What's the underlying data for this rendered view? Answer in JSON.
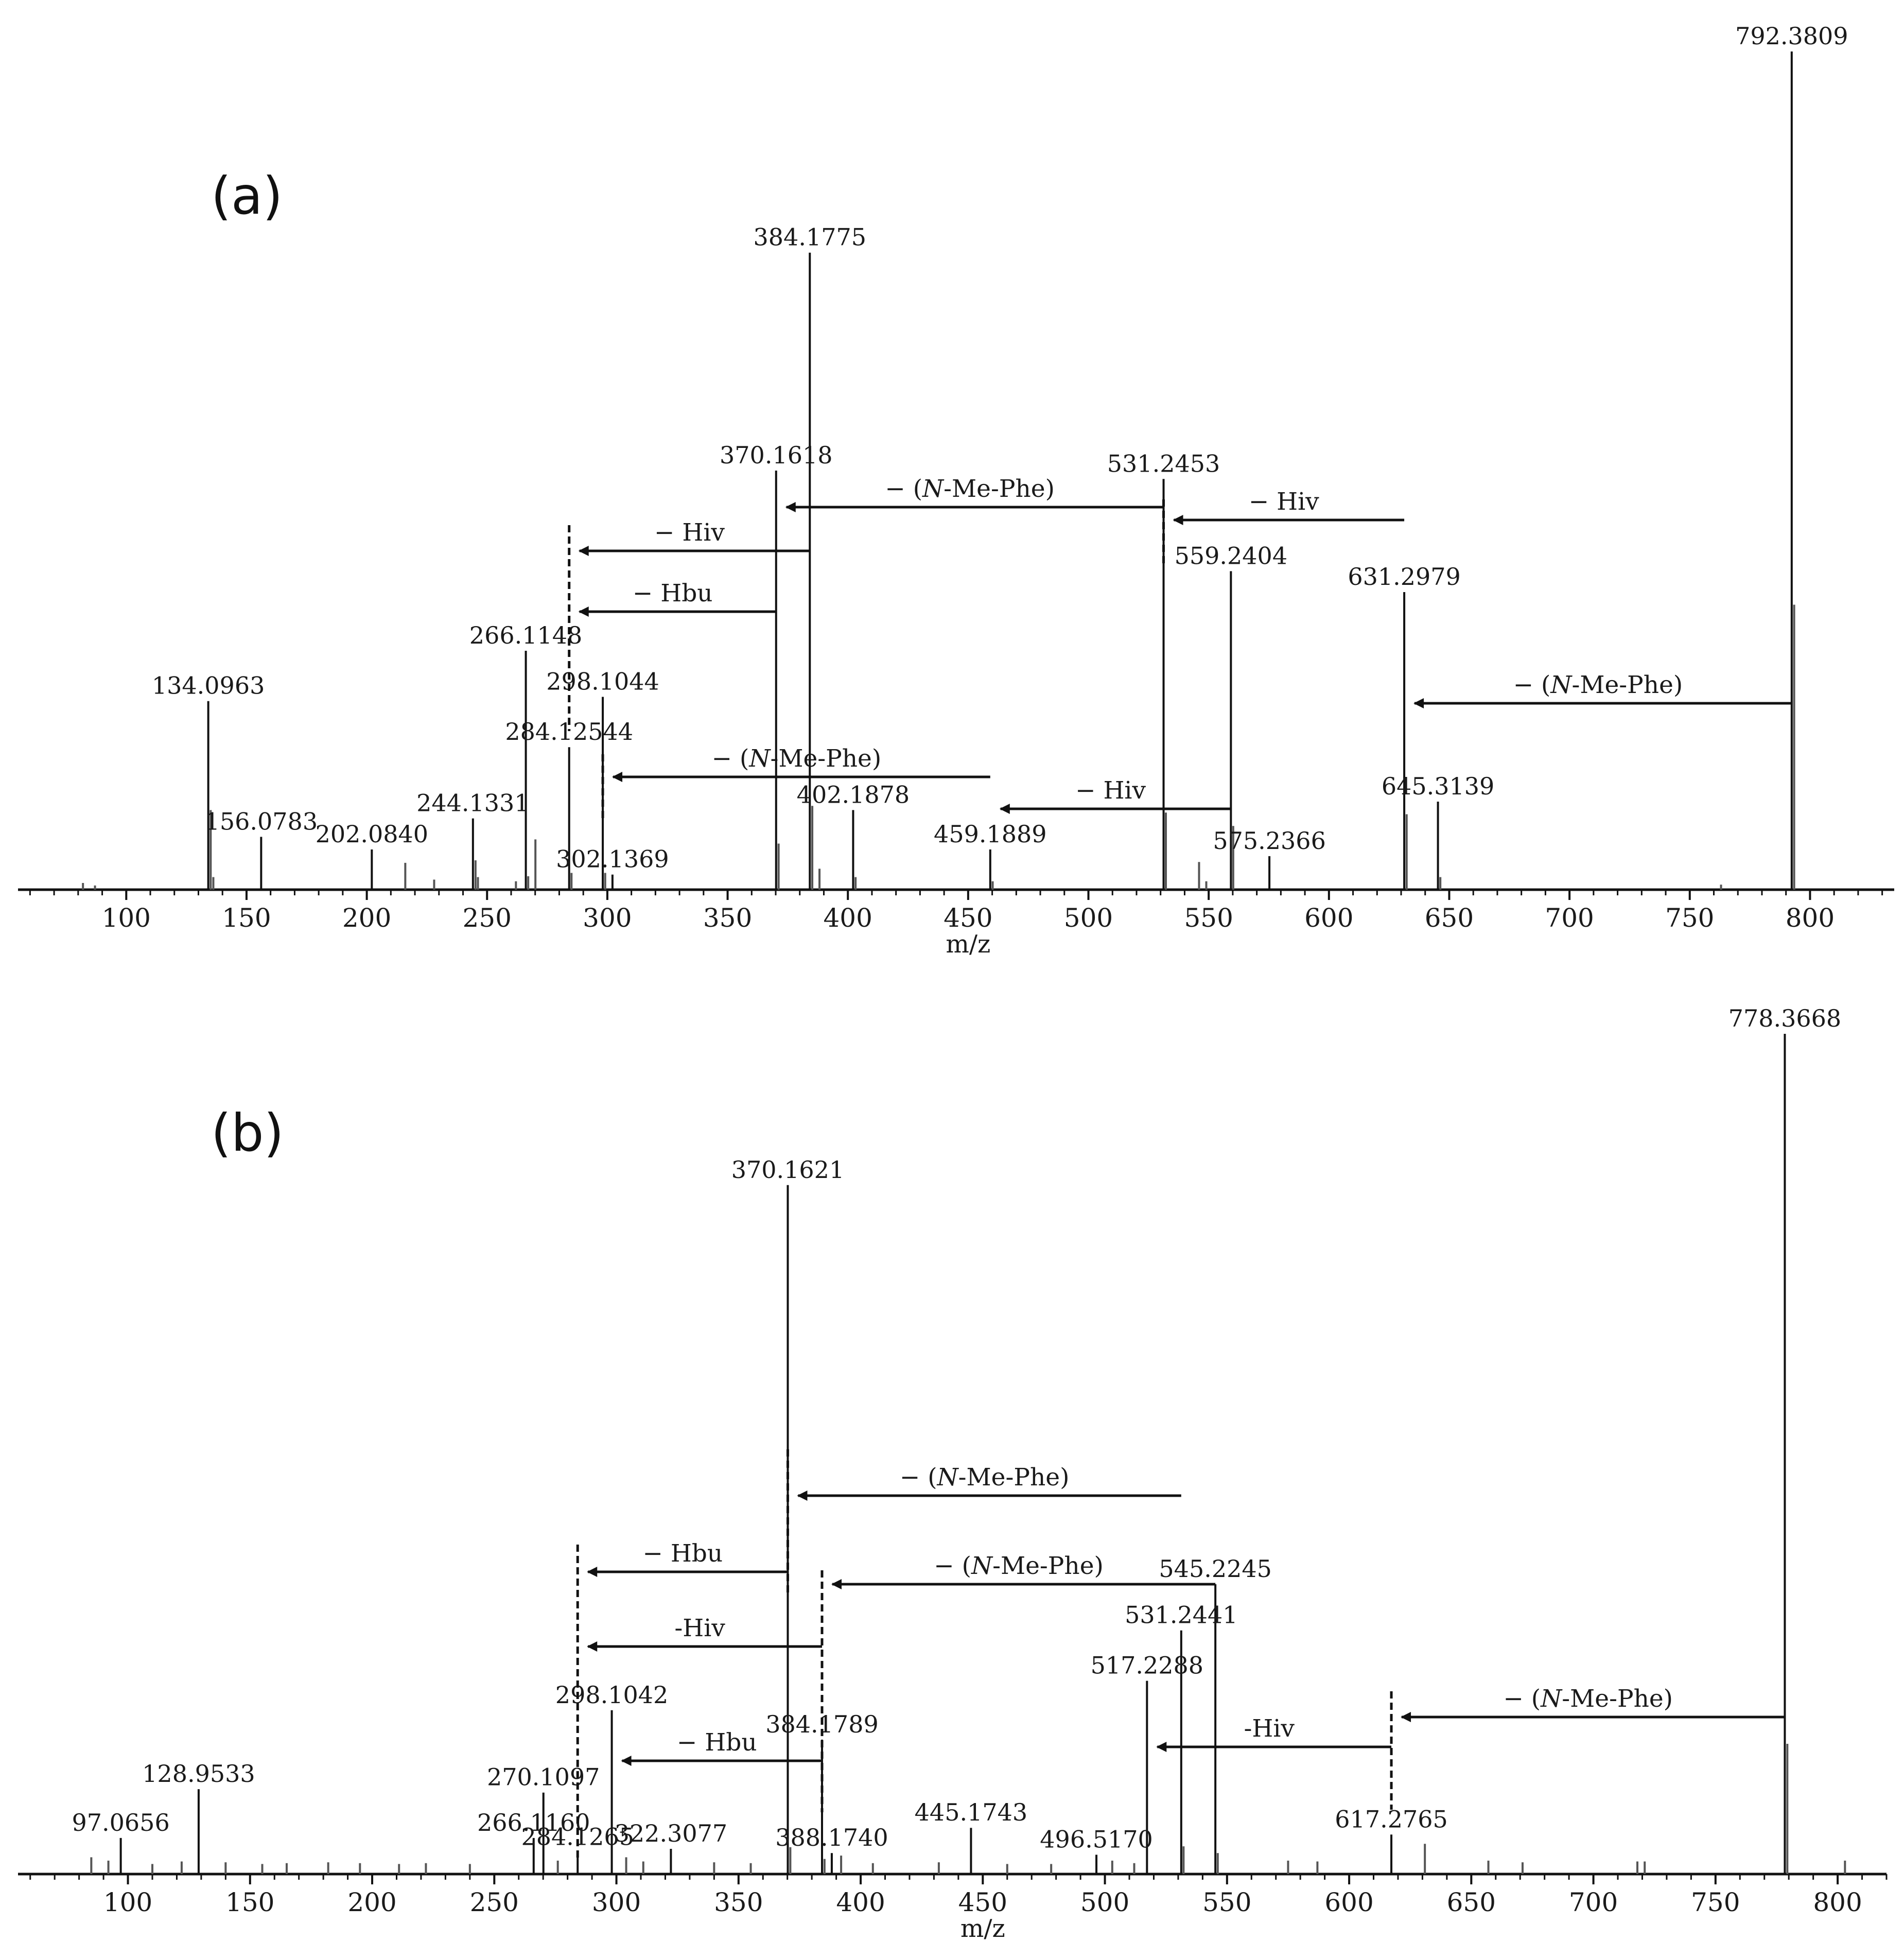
{
  "chart_data": [
    {
      "type": "bar",
      "panel_label": "(a)",
      "xlabel": "m/z",
      "xlim": [
        55,
        835
      ],
      "x_ticks": [
        "100",
        "150",
        "200",
        "250",
        "300",
        "350",
        "400",
        "450",
        "500",
        "550",
        "600",
        "650",
        "700",
        "750",
        "800"
      ],
      "y_relative_max": 100,
      "peaks": [
        {
          "mz": 792.3809,
          "label": "792.3809",
          "rel": 100
        },
        {
          "mz": 384.1775,
          "label": "384.1775",
          "rel": 76
        },
        {
          "mz": 370.1618,
          "label": "370.1618",
          "rel": 50
        },
        {
          "mz": 531.2453,
          "label": "531.2453",
          "rel": 49
        },
        {
          "mz": 559.2404,
          "label": "559.2404",
          "rel": 38
        },
        {
          "mz": 631.2979,
          "label": "631.2979",
          "rel": 35.5
        },
        {
          "mz": 266.1148,
          "label": "266.1148",
          "rel": 28.5
        },
        {
          "mz": 298.1044,
          "label": "298.1044",
          "rel": 23
        },
        {
          "mz": 134.0963,
          "label": "134.0963",
          "rel": 22.5
        },
        {
          "mz": 284.1254,
          "label": "284.12544",
          "rel": 17
        },
        {
          "mz": 402.1878,
          "label": "402.1878",
          "rel": 9.5
        },
        {
          "mz": 645.3139,
          "label": "645.3139",
          "rel": 10.5
        },
        {
          "mz": 244.1331,
          "label": "244.1331",
          "rel": 8.5
        },
        {
          "mz": 156.0783,
          "label": "156.0783",
          "rel": 6.3
        },
        {
          "mz": 202.084,
          "label": "202.0840",
          "rel": 4.8
        },
        {
          "mz": 459.1889,
          "label": "459.1889",
          "rel": 4.8
        },
        {
          "mz": 575.2366,
          "label": "575.2366",
          "rel": 4
        },
        {
          "mz": 302.1369,
          "label": "302.1369",
          "rel": 1.8
        }
      ],
      "minor_peaks": [
        {
          "mz": 82,
          "rel": 0.8
        },
        {
          "mz": 87,
          "rel": 0.5
        },
        {
          "mz": 135.1,
          "rel": 9.5
        },
        {
          "mz": 136.2,
          "rel": 1.5
        },
        {
          "mz": 216,
          "rel": 3.2
        },
        {
          "mz": 228,
          "rel": 1.2
        },
        {
          "mz": 245.2,
          "rel": 3.5
        },
        {
          "mz": 246.2,
          "rel": 1.5
        },
        {
          "mz": 262,
          "rel": 1
        },
        {
          "mz": 267.1,
          "rel": 1.6
        },
        {
          "mz": 270.1,
          "rel": 6
        },
        {
          "mz": 285.1,
          "rel": 2
        },
        {
          "mz": 299.1,
          "rel": 2
        },
        {
          "mz": 371.2,
          "rel": 5.5
        },
        {
          "mz": 385.2,
          "rel": 10
        },
        {
          "mz": 388.2,
          "rel": 2.5
        },
        {
          "mz": 403.2,
          "rel": 1.5
        },
        {
          "mz": 460.2,
          "rel": 1
        },
        {
          "mz": 532.2,
          "rel": 9.2
        },
        {
          "mz": 546,
          "rel": 3.3
        },
        {
          "mz": 549,
          "rel": 1
        },
        {
          "mz": 560.2,
          "rel": 7.6
        },
        {
          "mz": 632.3,
          "rel": 9
        },
        {
          "mz": 646.3,
          "rel": 1.5
        },
        {
          "mz": 763,
          "rel": 0.6
        },
        {
          "mz": 793.4,
          "rel": 34
        }
      ],
      "annotations": [
        {
          "label_prefix": "− Hiv",
          "from_mz": 631.2979,
          "to_mz": 531.2453
        },
        {
          "label_prefix": "− (",
          "label_italic": "N",
          "label_suffix": "-Me-Phe)",
          "from_mz": 531.2453,
          "to_mz": 370.1618
        },
        {
          "label_prefix": "− Hiv",
          "from_mz": 384.1775,
          "to_mz": 284.1254
        },
        {
          "label_prefix": "− Hbu",
          "from_mz": 370.1618,
          "to_mz": 284.1254
        },
        {
          "label_prefix": "− (",
          "label_italic": "N",
          "label_suffix": "-Me-Phe)",
          "from_mz": 792.3809,
          "to_mz": 631.2979
        },
        {
          "label_prefix": "− (",
          "label_italic": "N",
          "label_suffix": "-Me-Phe)",
          "from_mz": 459.1889,
          "to_mz": 298.1044
        },
        {
          "label_prefix": "− Hiv",
          "from_mz": 559.2404,
          "to_mz": 459.1889
        }
      ]
    },
    {
      "type": "bar",
      "panel_label": "(b)",
      "xlabel": "m/z",
      "xlim": [
        55,
        820
      ],
      "x_ticks": [
        "100",
        "150",
        "200",
        "250",
        "300",
        "350",
        "400",
        "450",
        "500",
        "550",
        "600",
        "650",
        "700",
        "750",
        "800"
      ],
      "y_relative_max": 100,
      "peaks": [
        {
          "mz": 778.3668,
          "label": "778.3668",
          "rel": 100
        },
        {
          "mz": 370.1621,
          "label": "370.1621",
          "rel": 82
        },
        {
          "mz": 545.2245,
          "label": "545.2245",
          "rel": 34.5
        },
        {
          "mz": 531.2441,
          "label": "531.2441",
          "rel": 29
        },
        {
          "mz": 517.2288,
          "label": "517.2288",
          "rel": 23
        },
        {
          "mz": 298.1042,
          "label": "298.1042",
          "rel": 19.5
        },
        {
          "mz": 384.1789,
          "label": "384.1789",
          "rel": 16
        },
        {
          "mz": 128.9533,
          "label": "128.9533",
          "rel": 10.1
        },
        {
          "mz": 270.1097,
          "label": "270.1097",
          "rel": 9.7
        },
        {
          "mz": 617.2765,
          "label": "617.2765",
          "rel": 4.7
        },
        {
          "mz": 445.1743,
          "label": "445.1743",
          "rel": 5.5
        },
        {
          "mz": 97.0656,
          "label": "97.0656",
          "rel": 4.3
        },
        {
          "mz": 266.116,
          "label": "266.1160",
          "rel": 4.3
        },
        {
          "mz": 322.3077,
          "label": "322.3077",
          "rel": 3
        },
        {
          "mz": 284.1265,
          "label": "284.1265",
          "rel": 2.6
        },
        {
          "mz": 388.174,
          "label": "388.1740",
          "rel": 2.5
        },
        {
          "mz": 496.517,
          "label": "496.5170",
          "rel": 2.3
        }
      ],
      "minor_peaks": [
        {
          "mz": 85,
          "rel": 2
        },
        {
          "mz": 92,
          "rel": 1.6
        },
        {
          "mz": 110,
          "rel": 1.2
        },
        {
          "mz": 122,
          "rel": 1.5
        },
        {
          "mz": 140,
          "rel": 1.4
        },
        {
          "mz": 155,
          "rel": 1.2
        },
        {
          "mz": 165,
          "rel": 1.3
        },
        {
          "mz": 182,
          "rel": 1.4
        },
        {
          "mz": 195,
          "rel": 1.3
        },
        {
          "mz": 211,
          "rel": 1.2
        },
        {
          "mz": 222,
          "rel": 1.3
        },
        {
          "mz": 240,
          "rel": 1.2
        },
        {
          "mz": 276,
          "rel": 1.6
        },
        {
          "mz": 304,
          "rel": 2
        },
        {
          "mz": 311,
          "rel": 1.5
        },
        {
          "mz": 340,
          "rel": 1.4
        },
        {
          "mz": 355,
          "rel": 1.3
        },
        {
          "mz": 371.2,
          "rel": 3.2
        },
        {
          "mz": 385.2,
          "rel": 1.8
        },
        {
          "mz": 392,
          "rel": 2.2
        },
        {
          "mz": 405,
          "rel": 1.3
        },
        {
          "mz": 432,
          "rel": 1.4
        },
        {
          "mz": 460,
          "rel": 1.2
        },
        {
          "mz": 478,
          "rel": 1.2
        },
        {
          "mz": 503,
          "rel": 1.6
        },
        {
          "mz": 512,
          "rel": 1.3
        },
        {
          "mz": 532.2,
          "rel": 3.3
        },
        {
          "mz": 546.2,
          "rel": 2.5
        },
        {
          "mz": 575,
          "rel": 1.6
        },
        {
          "mz": 587,
          "rel": 1.5
        },
        {
          "mz": 631,
          "rel": 3.6
        },
        {
          "mz": 657,
          "rel": 1.6
        },
        {
          "mz": 671,
          "rel": 1.4
        },
        {
          "mz": 718,
          "rel": 1.5
        },
        {
          "mz": 721,
          "rel": 1.5
        },
        {
          "mz": 779.4,
          "rel": 15.5
        },
        {
          "mz": 803,
          "rel": 1.6
        }
      ],
      "annotations": [
        {
          "label_prefix": "− (",
          "label_italic": "N",
          "label_suffix": "-Me-Phe)",
          "from_mz": 531.2441,
          "to_mz": 370.1621
        },
        {
          "label_prefix": "− Hbu",
          "from_mz": 370.1621,
          "to_mz": 284.1265
        },
        {
          "label_prefix": "− (",
          "label_italic": "N",
          "label_suffix": "-Me-Phe)",
          "from_mz": 545.2245,
          "to_mz": 384.1789
        },
        {
          "label_prefix": "-Hiv",
          "from_mz": 384.1789,
          "to_mz": 284.1265
        },
        {
          "label_prefix": "− Hbu",
          "from_mz": 384.1789,
          "to_mz": 298.1042
        },
        {
          "label_prefix": "− (",
          "label_italic": "N",
          "label_suffix": "-Me-Phe)",
          "from_mz": 778.3668,
          "to_mz": 617.2765
        },
        {
          "label_prefix": "-Hiv",
          "from_mz": 617.2765,
          "to_mz": 517.2288
        }
      ]
    }
  ],
  "colors": {
    "axis": "#111111",
    "major_peak": "#111111",
    "minor_peak": "#555555",
    "arrow": "#111111"
  }
}
